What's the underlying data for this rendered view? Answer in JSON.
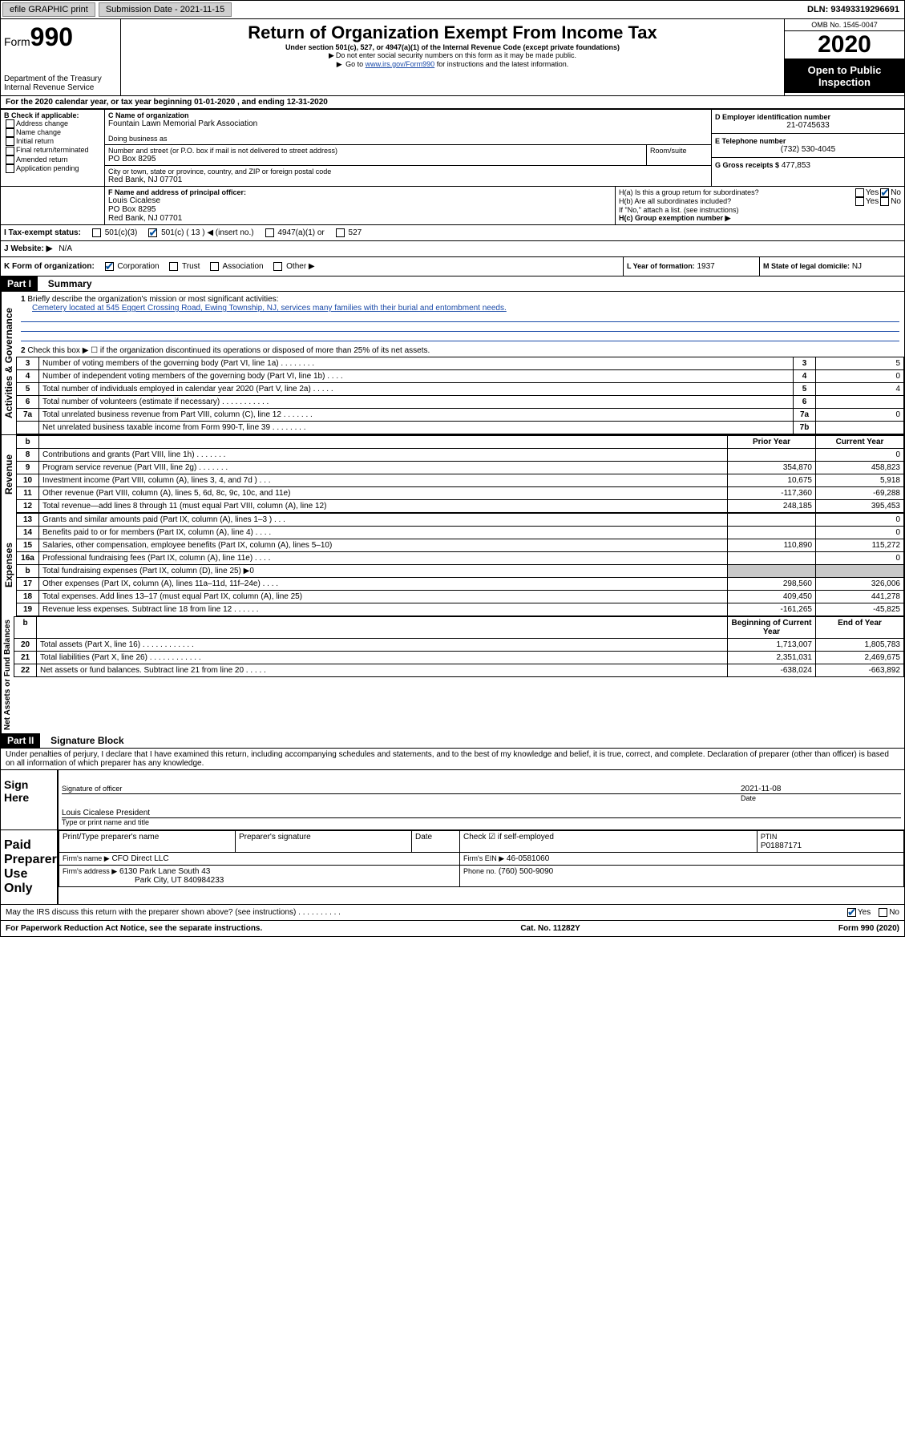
{
  "topbar": {
    "efile": "efile GRAPHIC print",
    "sub_label": "Submission Date - 2021-11-15",
    "dln": "DLN: 93493319296691"
  },
  "header": {
    "form_word": "Form",
    "form_num": "990",
    "dept": "Department of the Treasury\nInternal Revenue Service",
    "title": "Return of Organization Exempt From Income Tax",
    "sub1": "Under section 501(c), 527, or 4947(a)(1) of the Internal Revenue Code (except private foundations)",
    "sub2": "Do not enter social security numbers on this form as it may be made public.",
    "sub3_pre": "Go to ",
    "sub3_link": "www.irs.gov/Form990",
    "sub3_post": " for instructions and the latest information.",
    "omb": "OMB No. 1545-0047",
    "year": "2020",
    "open": "Open to Public Inspection"
  },
  "lineA": "For the 2020 calendar year, or tax year beginning 01-01-2020    , and ending 12-31-2020",
  "boxB": {
    "hdr": "B Check if applicable:",
    "items": [
      "Address change",
      "Name change",
      "Initial return",
      "Final return/terminated",
      "Amended return",
      "Application pending"
    ]
  },
  "boxC": {
    "label": "C Name of organization",
    "org": "Fountain Lawn Memorial Park Association",
    "dba_label": "Doing business as",
    "addr_label": "Number and street (or P.O. box if mail is not delivered to street address)",
    "room_label": "Room/suite",
    "addr": "PO Box 8295",
    "city_label": "City or town, state or province, country, and ZIP or foreign postal code",
    "city": "Red Bank, NJ  07701"
  },
  "boxD": {
    "label": "D Employer identification number",
    "val": "21-0745633"
  },
  "boxE": {
    "label": "E Telephone number",
    "val": "(732) 530-4045"
  },
  "boxG": {
    "label": "G Gross receipts $",
    "val": "477,853"
  },
  "boxF": {
    "label": "F  Name and address of principal officer:",
    "name": "Louis Cicalese",
    "addr1": "PO Box 8295",
    "addr2": "Red Bank, NJ  07701"
  },
  "boxH": {
    "a": "H(a)  Is this a group return for subordinates?",
    "b": "H(b)  Are all subordinates included?",
    "b_note": "If \"No,\" attach a list. (see instructions)",
    "c": "H(c)  Group exemption number ▶"
  },
  "boxI": {
    "label": "I   Tax-exempt status:",
    "opts": [
      "501(c)(3)",
      "501(c) ( 13 ) ◀ (insert no.)",
      "4947(a)(1) or",
      "527"
    ]
  },
  "boxJ": {
    "label": "J   Website: ▶",
    "val": "N/A"
  },
  "boxK": {
    "label": "K Form of organization:",
    "opts": [
      "Corporation",
      "Trust",
      "Association",
      "Other ▶"
    ]
  },
  "boxL": {
    "label": "L Year of formation:",
    "val": "1937"
  },
  "boxM": {
    "label": "M State of legal domicile:",
    "val": "NJ"
  },
  "part1": {
    "hdr": "Part I",
    "title": "Summary",
    "q1": "Briefly describe the organization's mission or most significant activities:",
    "q1_ans": "Cemetery located at 545 Eggert Crossing Road, Ewing Township, NJ, services many families with their burial and entombment needs.",
    "q2": "Check this box ▶ ☐  if the organization discontinued its operations or disposed of more than 25% of its net assets.",
    "lines_gov": [
      {
        "n": "3",
        "t": "Number of voting members of the governing body (Part VI, line 1a)   .    .    .    .    .    .    .    .",
        "r": "3",
        "v": "5"
      },
      {
        "n": "4",
        "t": "Number of independent voting members of the governing body (Part VI, line 1b)   .    .    .    .",
        "r": "4",
        "v": "0"
      },
      {
        "n": "5",
        "t": "Total number of individuals employed in calendar year 2020 (Part V, line 2a)   .    .    .    .    .",
        "r": "5",
        "v": "4"
      },
      {
        "n": "6",
        "t": "Total number of volunteers (estimate if necessary)   .    .    .    .    .    .    .    .    .    .    .",
        "r": "6",
        "v": ""
      },
      {
        "n": "7a",
        "t": "Total unrelated business revenue from Part VIII, column (C), line 12   .    .    .    .    .    .    .",
        "r": "7a",
        "v": "0"
      },
      {
        "n": "",
        "t": "Net unrelated business taxable income from Form 990-T, line 39   .    .    .    .    .    .    .    .",
        "r": "7b",
        "v": ""
      }
    ],
    "col_prior": "Prior Year",
    "col_curr": "Current Year",
    "rev": [
      {
        "n": "8",
        "t": "Contributions and grants (Part VIII, line 1h)   .    .    .    .    .    .    .",
        "p": "",
        "c": "0"
      },
      {
        "n": "9",
        "t": "Program service revenue (Part VIII, line 2g)   .    .    .    .    .    .    .",
        "p": "354,870",
        "c": "458,823"
      },
      {
        "n": "10",
        "t": "Investment income (Part VIII, column (A), lines 3, 4, and 7d )   .    .    .",
        "p": "10,675",
        "c": "5,918"
      },
      {
        "n": "11",
        "t": "Other revenue (Part VIII, column (A), lines 5, 6d, 8c, 9c, 10c, and 11e)",
        "p": "-117,360",
        "c": "-69,288"
      },
      {
        "n": "12",
        "t": "Total revenue—add lines 8 through 11 (must equal Part VIII, column (A), line 12)",
        "p": "248,185",
        "c": "395,453"
      }
    ],
    "exp": [
      {
        "n": "13",
        "t": "Grants and similar amounts paid (Part IX, column (A), lines 1–3 )   .    .    .",
        "p": "",
        "c": "0"
      },
      {
        "n": "14",
        "t": "Benefits paid to or for members (Part IX, column (A), line 4)   .    .    .    .",
        "p": "",
        "c": "0"
      },
      {
        "n": "15",
        "t": "Salaries, other compensation, employee benefits (Part IX, column (A), lines 5–10)",
        "p": "110,890",
        "c": "115,272"
      },
      {
        "n": "16a",
        "t": "Professional fundraising fees (Part IX, column (A), line 11e)   .    .    .    .",
        "p": "",
        "c": "0"
      },
      {
        "n": "b",
        "t": "Total fundraising expenses (Part IX, column (D), line 25) ▶0",
        "p": "shade",
        "c": "shade"
      },
      {
        "n": "17",
        "t": "Other expenses (Part IX, column (A), lines 11a–11d, 11f–24e)   .    .    .    .",
        "p": "298,560",
        "c": "326,006"
      },
      {
        "n": "18",
        "t": "Total expenses. Add lines 13–17 (must equal Part IX, column (A), line 25)",
        "p": "409,450",
        "c": "441,278"
      },
      {
        "n": "19",
        "t": "Revenue less expenses. Subtract line 18 from line 12   .    .    .    .    .    .",
        "p": "-161,265",
        "c": "-45,825"
      }
    ],
    "col_beg": "Beginning of Current Year",
    "col_end": "End of Year",
    "net": [
      {
        "n": "20",
        "t": "Total assets (Part X, line 16)   .    .    .    .    .    .    .    .    .    .    .    .",
        "p": "1,713,007",
        "c": "1,805,783"
      },
      {
        "n": "21",
        "t": "Total liabilities (Part X, line 26)   .    .    .    .    .    .    .    .    .    .    .    .",
        "p": "2,351,031",
        "c": "2,469,675"
      },
      {
        "n": "22",
        "t": "Net assets or fund balances. Subtract line 21 from line 20   .    .    .    .    .",
        "p": "-638,024",
        "c": "-663,892"
      }
    ]
  },
  "part2": {
    "hdr": "Part II",
    "title": "Signature Block",
    "decl": "Under penalties of perjury, I declare that I have examined this return, including accompanying schedules and statements, and to the best of my knowledge and belief, it is true, correct, and complete. Declaration of preparer (other than officer) is based on all information of which preparer has any knowledge.",
    "sign_here": "Sign Here",
    "sig_officer": "Signature of officer",
    "sig_date": "2021-11-08",
    "date_lbl": "Date",
    "typed": "Louis Cicalese  President",
    "typed_lbl": "Type or print name and title",
    "paid": "Paid Preparer Use Only",
    "prep_name_lbl": "Print/Type preparer's name",
    "prep_sig_lbl": "Preparer's signature",
    "check_lbl": "Check ☑ if self-employed",
    "ptin_lbl": "PTIN",
    "ptin": "P01887171",
    "firm_name_lbl": "Firm's name    ▶",
    "firm_name": "CFO Direct LLC",
    "firm_ein_lbl": "Firm's EIN ▶",
    "firm_ein": "46-0581060",
    "firm_addr_lbl": "Firm's address ▶",
    "firm_addr1": "6130 Park Lane South 43",
    "firm_addr2": "Park City, UT  840984233",
    "phone_lbl": "Phone no.",
    "phone": "(760) 500-9090",
    "discuss": "May the IRS discuss this return with the preparer shown above? (see instructions)   .    .    .    .    .    .    .    .    .    ."
  },
  "footer": {
    "left": "For Paperwork Reduction Act Notice, see the separate instructions.",
    "mid": "Cat. No. 11282Y",
    "right": "Form 990 (2020)"
  },
  "labels": {
    "yes": "Yes",
    "no": "No",
    "b": "b"
  },
  "vlabels": {
    "gov": "Activities & Governance",
    "rev": "Revenue",
    "exp": "Expenses",
    "net": "Net Assets or Fund Balances"
  }
}
